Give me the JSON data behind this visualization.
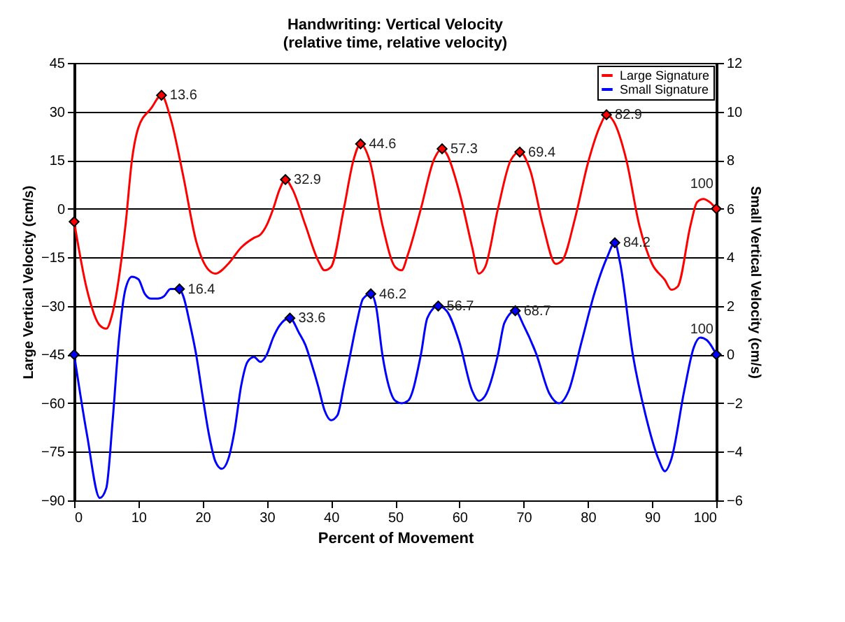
{
  "chart_data": {
    "type": "line",
    "title": "Handwriting: Vertical Velocity",
    "subtitle": "(relative time, relative velocity)",
    "xlabel": "Percent of Movement",
    "ylabel": "Large Vertical Velocity (cm/s)",
    "y2label": "Small Vertical Velocity (cm/s)",
    "xlim": [
      0,
      100
    ],
    "xticks": [
      0,
      10,
      20,
      30,
      40,
      50,
      60,
      70,
      80,
      90,
      100
    ],
    "ylim": [
      -90,
      45
    ],
    "yticks": [
      -90,
      -75,
      -60,
      -45,
      -30,
      -15,
      0,
      15,
      30,
      45
    ],
    "y2lim": [
      -6,
      12
    ],
    "y2ticks": [
      -6,
      -4,
      -2,
      0,
      2,
      4,
      6,
      8,
      10,
      12
    ],
    "grid": "y",
    "legend": "top right",
    "line_style": "solid",
    "series": [
      {
        "name": "Large Signature",
        "color": "#ff0000",
        "x": [
          0,
          2,
          4,
          5,
          6,
          8,
          9,
          10,
          12,
          13.6,
          15,
          17,
          19,
          21,
          22,
          24,
          26,
          28,
          29,
          30,
          31,
          32,
          32.9,
          34,
          36,
          38,
          39,
          40,
          42,
          43.5,
          44.6,
          46,
          48,
          50,
          51,
          52,
          54,
          56,
          57.3,
          58,
          60,
          62,
          63,
          64,
          66,
          68,
          69.4,
          71,
          73,
          75,
          76,
          78,
          80,
          82,
          82.9,
          84,
          86,
          88,
          90,
          92,
          93,
          94,
          96,
          97,
          98,
          99,
          100
        ],
        "values": [
          -4,
          -25,
          -36,
          -37,
          -32,
          -5,
          15,
          25,
          31,
          35,
          28,
          10,
          -10,
          -19,
          -20,
          -17,
          -12,
          -9,
          -8,
          -5,
          0,
          6,
          9,
          6,
          -5,
          -16,
          -19,
          -18,
          0,
          15,
          20,
          15,
          -5,
          -18,
          -19,
          -14,
          0,
          15,
          18.5,
          17,
          5,
          -12,
          -20,
          -18,
          0,
          15,
          17.5,
          12,
          -5,
          -17,
          -16,
          -3,
          14,
          26,
          29,
          27,
          15,
          -5,
          -17,
          -22,
          -25,
          -24,
          -5,
          2,
          3,
          2,
          0
        ]
      },
      {
        "name": "Small Signature",
        "color": "#0000ff",
        "axis": "y2",
        "x": [
          0,
          2,
          4,
          5,
          6,
          7,
          8,
          9,
          10,
          11,
          12,
          13,
          14,
          15,
          16.4,
          17,
          18,
          19,
          20,
          21,
          22,
          23,
          24,
          25,
          26,
          27,
          28,
          29,
          30,
          31,
          32,
          33.6,
          35,
          36,
          37,
          38,
          39,
          40,
          41,
          42,
          43,
          44,
          45,
          46.2,
          47,
          48,
          49,
          50,
          51,
          52,
          54,
          55,
          56.7,
          58,
          60,
          62,
          63,
          64,
          66,
          67,
          68.7,
          70,
          72,
          74,
          75.5,
          77,
          79,
          81,
          83,
          84.2,
          85,
          87,
          89,
          91,
          92,
          93,
          95,
          96.5,
          97.5,
          98.5,
          100
        ],
        "values": [
          0,
          -3.3,
          -5.9,
          -5.5,
          -2.7,
          0.7,
          2.7,
          3.2,
          3.1,
          2.5,
          2.3,
          2.3,
          2.4,
          2.7,
          2.7,
          2.4,
          1.3,
          0,
          -1.7,
          -3.3,
          -4.4,
          -4.7,
          -4.3,
          -3.1,
          -1.3,
          -0.3,
          -0.1,
          -0.3,
          0,
          0.7,
          1.2,
          1.5,
          0.9,
          0.4,
          -0.4,
          -1.3,
          -2.3,
          -2.7,
          -2.5,
          -1.3,
          0,
          1.3,
          2.3,
          2.5,
          2,
          0,
          -1.3,
          -1.9,
          -2,
          -1.9,
          0,
          1.5,
          2,
          1.8,
          0.5,
          -1.5,
          -1.9,
          -1.7,
          0,
          1.3,
          1.8,
          1.2,
          0,
          -1.6,
          -2,
          -1.5,
          0.5,
          2.5,
          4,
          4.6,
          3.8,
          0,
          -2.5,
          -4.3,
          -4.8,
          -4.3,
          -1.5,
          0.3,
          0.7,
          0.6,
          0
        ]
      },
      {
        "color": "#ff0000",
        "type": "scatter",
        "marker": "diamond",
        "x": [
          0,
          13.6,
          32.9,
          44.6,
          57.3,
          69.4,
          82.9,
          100
        ],
        "values": [
          -4,
          35,
          9,
          20,
          18.5,
          17.5,
          29,
          0
        ]
      },
      {
        "color": "#0000ff",
        "type": "scatter",
        "marker": "diamond",
        "axis": "y2",
        "x": [
          0,
          16.4,
          33.6,
          46.2,
          56.7,
          68.7,
          84.2,
          100
        ],
        "values": [
          0,
          2.7,
          1.5,
          2.5,
          2,
          1.8,
          4.6,
          0
        ]
      }
    ],
    "annotations": [
      {
        "text": "13.6",
        "x": 13.6,
        "y": 35
      },
      {
        "text": "32.9",
        "x": 32.9,
        "y": 9
      },
      {
        "text": "44.6",
        "x": 44.6,
        "y": 20
      },
      {
        "text": "57.3",
        "x": 57.3,
        "y": 18.5
      },
      {
        "text": "69.4",
        "x": 69.4,
        "y": 17.5
      },
      {
        "text": "82.9",
        "x": 82.9,
        "y": 29
      },
      {
        "text": "100",
        "x": 100,
        "y": 0
      },
      {
        "text": "16.4",
        "x": 16.4,
        "y": -24.8
      },
      {
        "text": "33.6",
        "x": 33.6,
        "y": -33.8
      },
      {
        "text": "46.2",
        "x": 46.2,
        "y": -26.3
      },
      {
        "text": "56.7",
        "x": 56.7,
        "y": -30
      },
      {
        "text": "68.7",
        "x": 68.7,
        "y": -31.5
      },
      {
        "text": "84.2",
        "x": 84.2,
        "y": -10.5
      },
      {
        "text": "100",
        "x": 100,
        "y": -45
      }
    ]
  }
}
